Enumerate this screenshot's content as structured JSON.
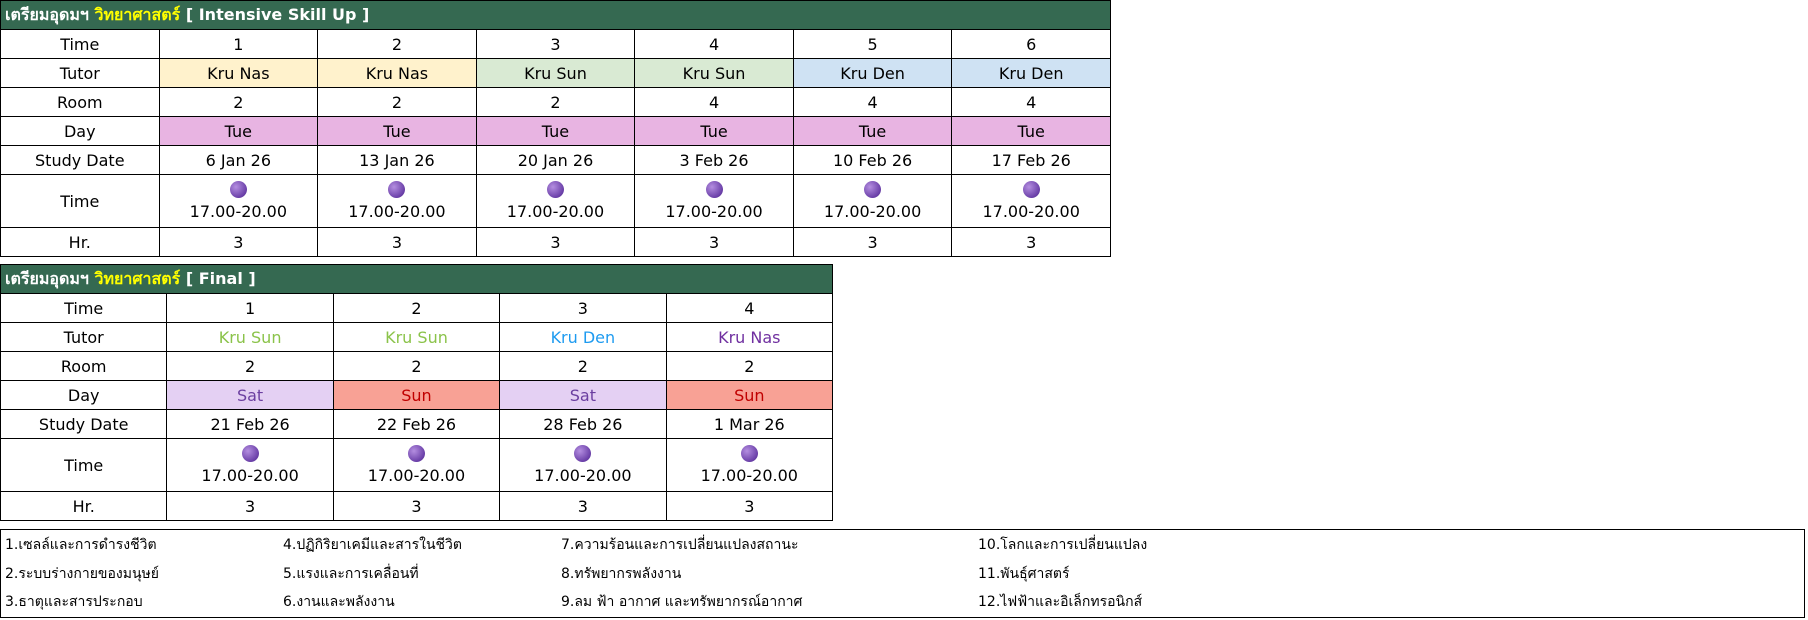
{
  "tables": [
    {
      "title_prefix": "เตรียมอุดมฯ",
      "title_highlight": "วิทยาศาสตร์",
      "title_suffix": "[ Intensive Skill Up ]",
      "labels": {
        "time": "Time",
        "tutor": "Tutor",
        "room": "Room",
        "day": "Day",
        "date": "Study Date",
        "slot": "Time",
        "hr": "Hr."
      },
      "sessions": [
        {
          "time": "1",
          "tutor": "Kru Nas",
          "room": "2",
          "day": "Tue",
          "date": "6 Jan 26",
          "slot": "17.00-20.00",
          "hr": "3",
          "tutor_bg": "#fff2cc",
          "tutor_color": "#000000",
          "day_bg": "#e8b4e2",
          "day_color": "#000000"
        },
        {
          "time": "2",
          "tutor": "Kru Nas",
          "room": "2",
          "day": "Tue",
          "date": "13 Jan 26",
          "slot": "17.00-20.00",
          "hr": "3",
          "tutor_bg": "#fff2cc",
          "tutor_color": "#000000",
          "day_bg": "#e8b4e2",
          "day_color": "#000000"
        },
        {
          "time": "3",
          "tutor": "Kru Sun",
          "room": "2",
          "day": "Tue",
          "date": "20 Jan 26",
          "slot": "17.00-20.00",
          "hr": "3",
          "tutor_bg": "#d9ead3",
          "tutor_color": "#000000",
          "day_bg": "#e8b4e2",
          "day_color": "#000000"
        },
        {
          "time": "4",
          "tutor": "Kru Sun",
          "room": "4",
          "day": "Tue",
          "date": "3 Feb 26",
          "slot": "17.00-20.00",
          "hr": "3",
          "tutor_bg": "#d9ead3",
          "tutor_color": "#000000",
          "day_bg": "#e8b4e2",
          "day_color": "#000000"
        },
        {
          "time": "5",
          "tutor": "Kru Den",
          "room": "4",
          "day": "Tue",
          "date": "10 Feb 26",
          "slot": "17.00-20.00",
          "hr": "3",
          "tutor_bg": "#cfe2f3",
          "tutor_color": "#000000",
          "day_bg": "#e8b4e2",
          "day_color": "#000000"
        },
        {
          "time": "6",
          "tutor": "Kru Den",
          "room": "4",
          "day": "Tue",
          "date": "17 Feb 26",
          "slot": "17.00-20.00",
          "hr": "3",
          "tutor_bg": "#cfe2f3",
          "tutor_color": "#000000",
          "day_bg": "#e8b4e2",
          "day_color": "#000000"
        }
      ]
    },
    {
      "title_prefix": "เตรียมอุดมฯ",
      "title_highlight": "วิทยาศาสตร์",
      "title_suffix": "[ Final ]",
      "labels": {
        "time": "Time",
        "tutor": "Tutor",
        "room": "Room",
        "day": "Day",
        "date": "Study Date",
        "slot": "Time",
        "hr": "Hr."
      },
      "sessions": [
        {
          "time": "1",
          "tutor": "Kru Sun",
          "room": "2",
          "day": "Sat",
          "date": "21 Feb 26",
          "slot": "17.00-20.00",
          "hr": "3",
          "tutor_bg": "#ffffff",
          "tutor_color": "#8bc34a",
          "day_bg": "#e4d0f3",
          "day_color": "#6b3fa0"
        },
        {
          "time": "2",
          "tutor": "Kru Sun",
          "room": "2",
          "day": "Sun",
          "date": "22 Feb 26",
          "slot": "17.00-20.00",
          "hr": "3",
          "tutor_bg": "#ffffff",
          "tutor_color": "#8bc34a",
          "day_bg": "#f8a195",
          "day_color": "#c00000"
        },
        {
          "time": "3",
          "tutor": "Kru Den",
          "room": "2",
          "day": "Sat",
          "date": "28 Feb 26",
          "slot": "17.00-20.00",
          "hr": "3",
          "tutor_bg": "#ffffff",
          "tutor_color": "#1e9bf0",
          "day_bg": "#e4d0f3",
          "day_color": "#6b3fa0"
        },
        {
          "time": "4",
          "tutor": "Kru Nas",
          "room": "2",
          "day": "Sun",
          "date": "1 Mar 26",
          "slot": "17.00-20.00",
          "hr": "3",
          "tutor_bg": "#ffffff",
          "tutor_color": "#7030a0",
          "day_bg": "#f8a195",
          "day_color": "#c00000"
        }
      ]
    }
  ],
  "legend": [
    "1.เซลล์และการดำรงชีวิต",
    "2.ระบบร่างกายของมนุษย์",
    "3.ธาตุและสารประกอบ",
    "4.ปฏิกิริยาเคมีและสารในชีวิต",
    "5.แรงและการเคลื่อนที่",
    "6.งานและพลังงาน",
    "7.ความร้อนและการเปลี่ยนแปลงสถานะ",
    "8.ทรัพยากรพลังงาน",
    "9.ลม ฟ้า อากาศ และทรัพยากรณ์อากาศ",
    "10.โลกและการเปลี่ยนแปลง",
    "11.พันธุ์ศาสตร์",
    "12.ไฟฟ้าและอิเล็กทรอนิกส์"
  ],
  "icons": {
    "time_marker": "purple-ball-icon"
  }
}
